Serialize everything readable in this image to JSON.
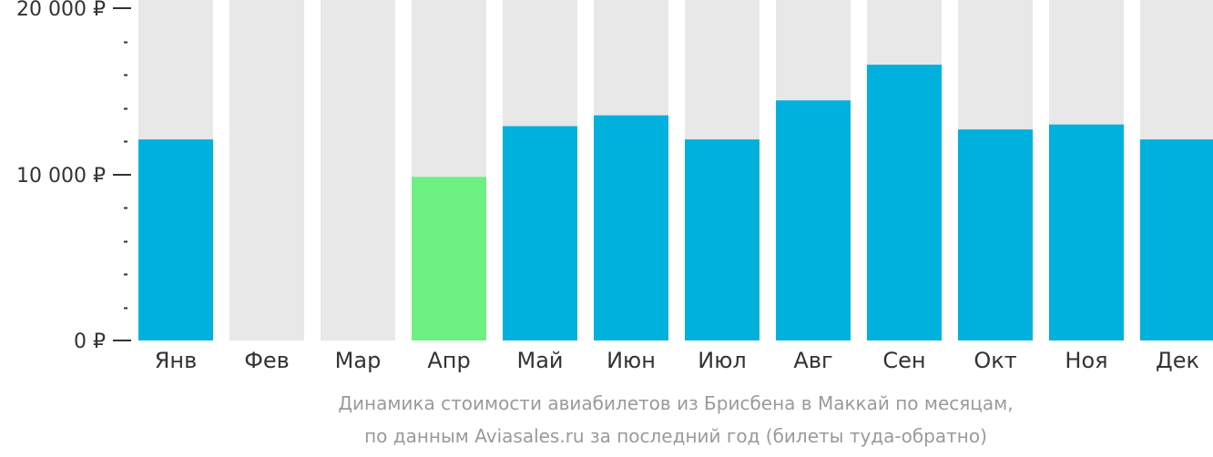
{
  "chart_data": {
    "type": "bar",
    "categories": [
      "Янв",
      "Фев",
      "Мар",
      "Апр",
      "Май",
      "Июн",
      "Июл",
      "Авг",
      "Сен",
      "Окт",
      "Ноя",
      "Дек"
    ],
    "values": [
      12100,
      null,
      null,
      9850,
      12900,
      13550,
      12100,
      14450,
      16600,
      12700,
      13000,
      12100
    ],
    "ylim": [
      0,
      20000
    ],
    "y_ticks": [
      {
        "value": 0,
        "label": "0 ₽"
      },
      {
        "value": 10000,
        "label": "10 000 ₽"
      },
      {
        "value": 20000,
        "label": "20 000 ₽"
      }
    ],
    "minor_tick_step": 2000,
    "highlight_category": "Апр",
    "colors": {
      "bar": "#00b0dd",
      "highlight": "#6cf082",
      "background_column": "#e8e8e8",
      "axis": "#333333"
    },
    "grid": false,
    "legend": "none",
    "caption": [
      "Динамика стоимости авиабилетов из Брисбена в Маккай по месяцам,",
      "по данным Aviasales.ru за последний год (билеты туда-обратно)"
    ]
  }
}
